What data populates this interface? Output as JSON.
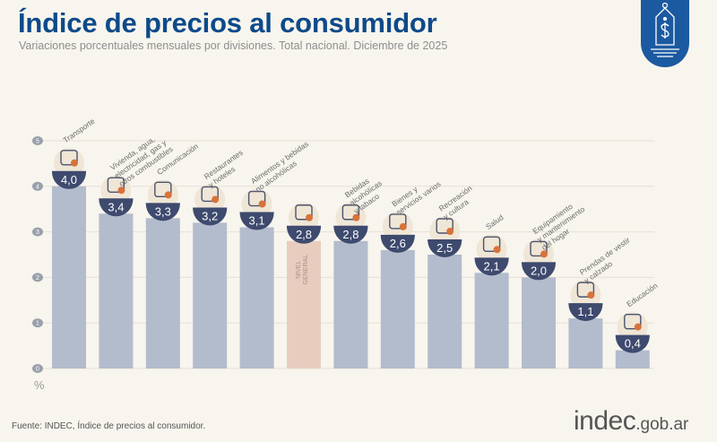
{
  "header": {
    "title": "Índice de precios al consumidor",
    "subtitle": "Variaciones porcentuales mensuales por divisiones. Total nacional. Diciembre de 2025",
    "badge_icon": "price-tag-dollar-icon"
  },
  "footer": {
    "source": "Fuente: INDEC, Índice de precios al consumidor.",
    "brand_main": "indec",
    "brand_suffix": ".gob.ar"
  },
  "colors": {
    "title": "#0d4a8a",
    "bar": "#b3bccd",
    "highlight_bar": "#e8cdbf",
    "value_bowl": "#3e4a6e",
    "icon_accent": "#d9723a",
    "badge": "#1b5aa0"
  },
  "chart_data": {
    "type": "bar",
    "title": "Índice de precios al consumidor",
    "subtitle": "Variaciones porcentuales mensuales por divisiones. Total nacional. Diciembre de 2025",
    "xlabel": "",
    "ylabel": "%",
    "ylim": [
      0,
      5
    ],
    "yticks": [
      0,
      1,
      2,
      3,
      4,
      5
    ],
    "grid": true,
    "categories": [
      "Transporte",
      "Vivienda, agua, electricidad, gas y otros combustibles",
      "Comunicación",
      "Restaurantes y hoteles",
      "Alimentos y bebidas no alcohólicas",
      "Nivel general",
      "Bebidas alcohólicas y tabaco",
      "Bienes y servicios varios",
      "Recreación y cultura",
      "Salud",
      "Equipamiento y mantenimiento del hogar",
      "Prendas de vestir y calzado",
      "Educación"
    ],
    "label_lines": [
      [
        "Transporte"
      ],
      [
        "Vivienda, agua,",
        "electricidad, gas y",
        "otros combustibles"
      ],
      [
        "Comunicación"
      ],
      [
        "Restaurantes",
        "y hoteles"
      ],
      [
        "Alimentos y bebidas",
        "no alcohólicas"
      ],
      [],
      [
        "Bebidas",
        "alcohólicas",
        "y tabaco"
      ],
      [
        "Bienes y",
        "servicios varios"
      ],
      [
        "Recreación",
        "y cultura"
      ],
      [
        "Salud"
      ],
      [
        "Equipamiento",
        "y mantenimiento",
        "del hogar"
      ],
      [
        "Prendas de vestir",
        "y calzado"
      ],
      [
        "Educación"
      ]
    ],
    "values": [
      4.0,
      3.4,
      3.3,
      3.2,
      3.1,
      2.8,
      2.8,
      2.6,
      2.5,
      2.1,
      2.0,
      1.1,
      0.4
    ],
    "value_labels": [
      "4,0",
      "3,4",
      "3,3",
      "3,2",
      "3,1",
      "2,8",
      "2,8",
      "2,6",
      "2,5",
      "2,1",
      "2,0",
      "1,1",
      "0,4"
    ],
    "icons": [
      "car-icon",
      "lightbulb-tools-icon",
      "smartphone-icon",
      "plate-cutlery-icon",
      "food-icon",
      "shopping-basket-icon",
      "bottles-glass-icon",
      "comb-scissors-icon",
      "umbrella-sun-icon",
      "medical-cross-icon",
      "appliance-icon",
      "tshirt-icon",
      "notebook-icon"
    ],
    "highlight_index": 5,
    "highlight_text": [
      "NIVEL",
      "GENERAL"
    ],
    "unit_label": "%"
  }
}
